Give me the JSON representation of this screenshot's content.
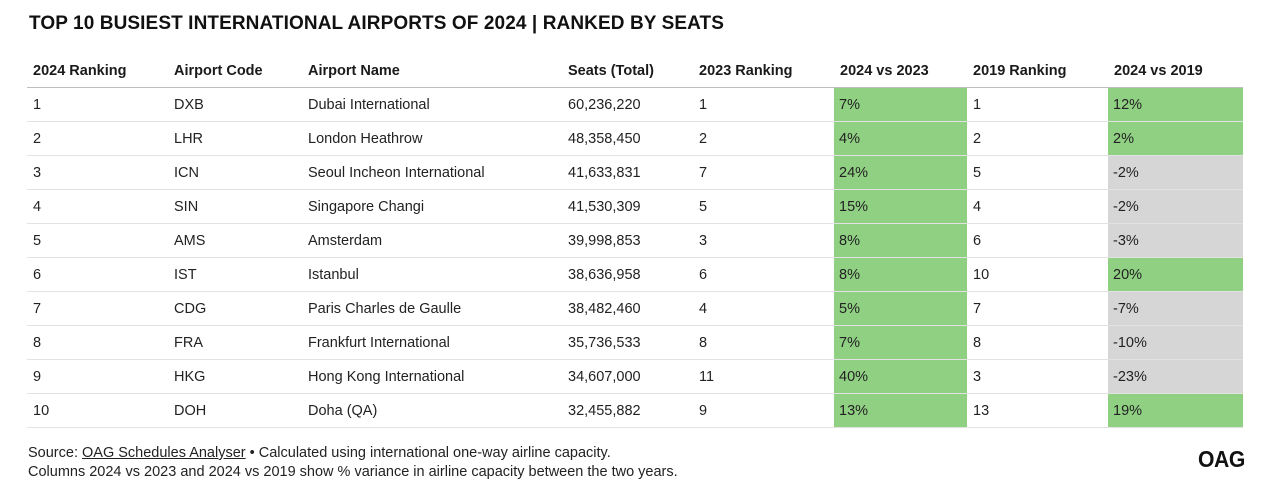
{
  "title": "TOP 10 BUSIEST INTERNATIONAL AIRPORTS OF 2024 | RANKED BY SEATS",
  "columns": [
    "2024 Ranking",
    "Airport Code",
    "Airport Name",
    "Seats (Total)",
    "2023 Ranking",
    "2024 vs 2023",
    "2019 Ranking",
    "2024 vs 2019"
  ],
  "rows": [
    {
      "rank_2024": "1",
      "code": "DXB",
      "name": "Dubai International",
      "seats": "60,236,220",
      "rank_2023": "1",
      "vs_2023": "7%",
      "rank_2019": "1",
      "vs_2019": "12%"
    },
    {
      "rank_2024": "2",
      "code": "LHR",
      "name": "London Heathrow",
      "seats": "48,358,450",
      "rank_2023": "2",
      "vs_2023": "4%",
      "rank_2019": "2",
      "vs_2019": "2%"
    },
    {
      "rank_2024": "3",
      "code": "ICN",
      "name": "Seoul Incheon International",
      "seats": "41,633,831",
      "rank_2023": "7",
      "vs_2023": "24%",
      "rank_2019": "5",
      "vs_2019": "-2%"
    },
    {
      "rank_2024": "4",
      "code": "SIN",
      "name": "Singapore Changi",
      "seats": "41,530,309",
      "rank_2023": "5",
      "vs_2023": "15%",
      "rank_2019": "4",
      "vs_2019": "-2%"
    },
    {
      "rank_2024": "5",
      "code": "AMS",
      "name": "Amsterdam",
      "seats": "39,998,853",
      "rank_2023": "3",
      "vs_2023": "8%",
      "rank_2019": "6",
      "vs_2019": "-3%"
    },
    {
      "rank_2024": "6",
      "code": "IST",
      "name": "Istanbul",
      "seats": "38,636,958",
      "rank_2023": "6",
      "vs_2023": "8%",
      "rank_2019": "10",
      "vs_2019": "20%"
    },
    {
      "rank_2024": "7",
      "code": "CDG",
      "name": "Paris Charles de Gaulle",
      "seats": "38,482,460",
      "rank_2023": "4",
      "vs_2023": "5%",
      "rank_2019": "7",
      "vs_2019": "-7%"
    },
    {
      "rank_2024": "8",
      "code": "FRA",
      "name": "Frankfurt International",
      "seats": "35,736,533",
      "rank_2023": "8",
      "vs_2023": "7%",
      "rank_2019": "8",
      "vs_2019": "-10%"
    },
    {
      "rank_2024": "9",
      "code": "HKG",
      "name": "Hong Kong International",
      "seats": "34,607,000",
      "rank_2023": "11",
      "vs_2023": "40%",
      "rank_2019": "3",
      "vs_2019": "-23%"
    },
    {
      "rank_2024": "10",
      "code": "DOH",
      "name": "Doha (QA)",
      "seats": "32,455,882",
      "rank_2023": "9",
      "vs_2023": "13%",
      "rank_2019": "13",
      "vs_2019": "19%"
    }
  ],
  "footer": {
    "source_prefix": "Source: ",
    "source_link": "OAG Schedules Analyser",
    "source_suffix": " • Calculated using international one-way airline capacity.",
    "note": "Columns 2024 vs 2023 and 2024 vs 2019 show % variance in airline capacity between the two years."
  },
  "logo": "OAG",
  "colors": {
    "positive": "#90d083",
    "negative": "#d6d6d6"
  }
}
